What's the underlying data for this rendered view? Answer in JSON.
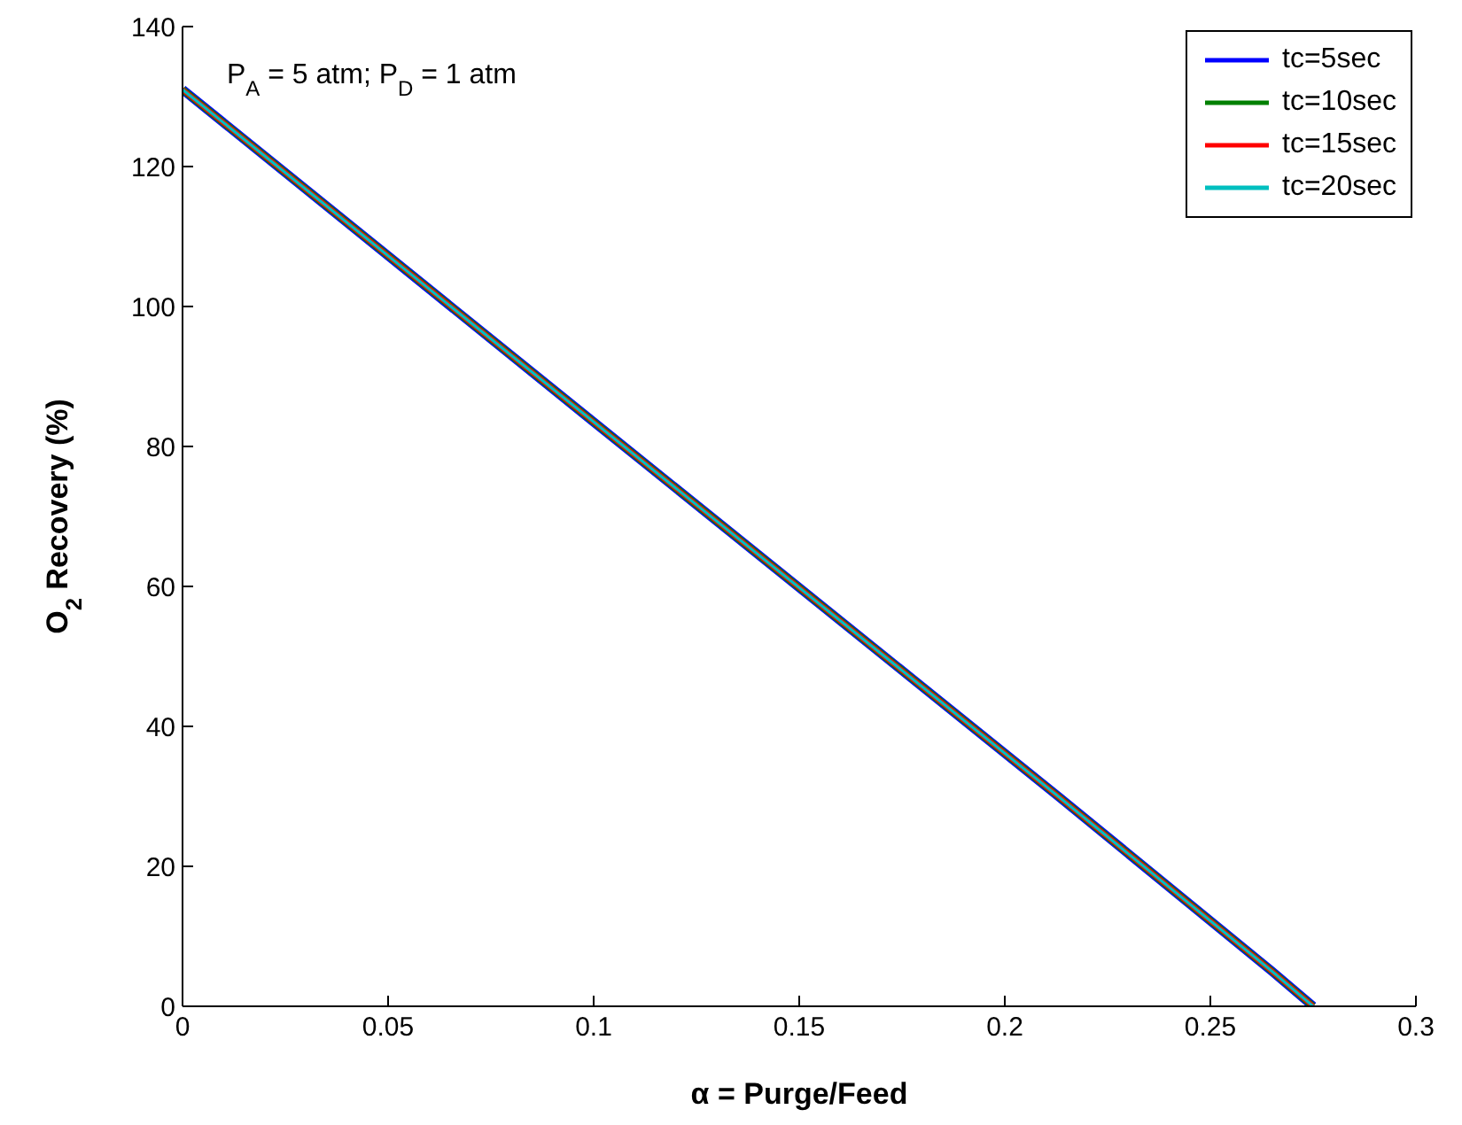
{
  "chart_data": {
    "type": "line",
    "xlabel": "α = Purge/Feed",
    "ylabel": "O$_{2}$ Recovery (%)",
    "annotations": [
      "P$_{A}$ = 5 atm; P$_{D}$ = 1 atm"
    ],
    "xlim": [
      0,
      0.3
    ],
    "xticks": [
      0,
      0.05,
      0.1,
      0.15,
      0.2,
      0.25,
      0.3
    ],
    "ylim": [
      0,
      140
    ],
    "yticks": [
      0,
      20,
      40,
      60,
      80,
      100,
      120,
      140
    ],
    "x": [
      0,
      0.1,
      0.213,
      0.265,
      0.275
    ],
    "legend": "top right",
    "grid": false,
    "marker": "none",
    "line_style": "solid",
    "series": [
      {
        "name": "tc=5sec",
        "color": "#0000ff",
        "values": [
          131,
          83.5,
          30,
          5,
          0
        ]
      },
      {
        "name": "tc=10sec",
        "color": "#008000",
        "values": [
          131,
          83.5,
          30,
          5,
          0
        ]
      },
      {
        "name": "tc=15sec",
        "color": "#ff0000",
        "values": [
          131,
          83.5,
          30,
          5,
          0
        ]
      },
      {
        "name": "tc=20sec",
        "color": "#00bfbf",
        "values": [
          131,
          83.5,
          30,
          5,
          0
        ]
      }
    ]
  }
}
